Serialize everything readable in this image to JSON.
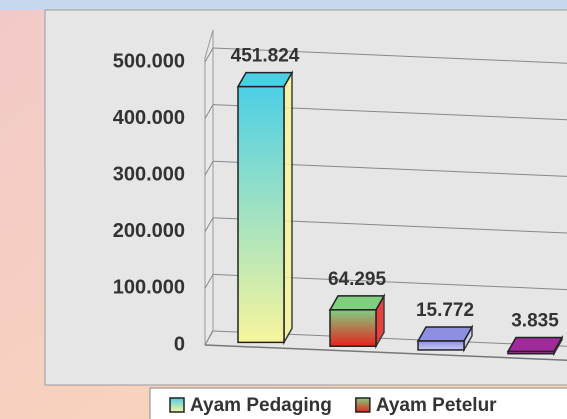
{
  "chart_data": {
    "type": "bar3d",
    "categories": [
      "Ayam Pedaging",
      "Ayam Petelur",
      null,
      null
    ],
    "values": [
      451824,
      64295,
      15772,
      3835
    ],
    "value_labels": [
      "451.824",
      "64.295",
      "15.772",
      "3.835"
    ],
    "colors": [
      [
        "#4ccfe6",
        "#f7f59c"
      ],
      [
        "#7fcf7f",
        "#e8231e"
      ],
      [
        "#8e8fe0",
        "#c9cbf5"
      ],
      [
        "#a02a9a",
        "#d14bc8"
      ]
    ],
    "ylim": [
      0,
      500000
    ],
    "yticks": [
      0,
      {
        "value": 100000,
        "label": "100.000"
      },
      {
        "value": 200000,
        "label": "200.000"
      },
      {
        "value": 300000,
        "label": "300.000"
      },
      {
        "value": 400000,
        "label": "400.000"
      },
      {
        "value": 500000,
        "label": "500.000"
      }
    ],
    "grid": true
  }
}
